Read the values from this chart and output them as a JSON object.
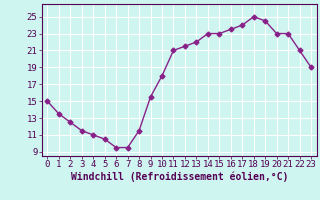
{
  "x": [
    0,
    1,
    2,
    3,
    4,
    5,
    6,
    7,
    8,
    9,
    10,
    11,
    12,
    13,
    14,
    15,
    16,
    17,
    18,
    19,
    20,
    21,
    22,
    23
  ],
  "y": [
    15,
    13.5,
    12.5,
    11.5,
    11,
    10.5,
    9.5,
    9.5,
    11.5,
    15.5,
    18,
    21,
    21.5,
    22,
    23,
    23,
    23.5,
    24,
    25,
    24.5,
    23,
    23,
    21,
    19
  ],
  "line_color": "#882288",
  "marker": "D",
  "marker_size": 2.5,
  "bg_color": "#cef5f0",
  "grid_color": "#ffffff",
  "xlabel": "Windchill (Refroidissement éolien,°C)",
  "xlabel_fontsize": 7,
  "tick_fontsize": 6.5,
  "ylim": [
    8.5,
    26.5
  ],
  "xlim": [
    -0.5,
    23.5
  ],
  "yticks": [
    9,
    11,
    13,
    15,
    17,
    19,
    21,
    23,
    25
  ],
  "xticks": [
    0,
    1,
    2,
    3,
    4,
    5,
    6,
    7,
    8,
    9,
    10,
    11,
    12,
    13,
    14,
    15,
    16,
    17,
    18,
    19,
    20,
    21,
    22,
    23
  ]
}
